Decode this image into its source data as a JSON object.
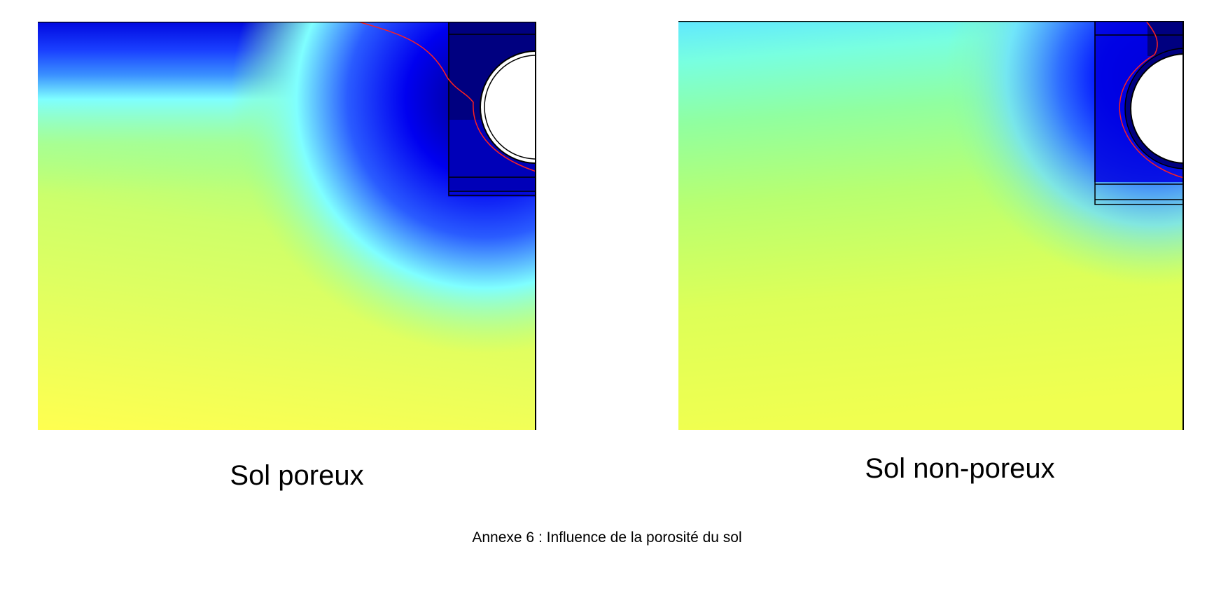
{
  "figures": [
    {
      "label": "Sol poreux",
      "colormap": [
        "#FFFF50",
        "#7FFFFF",
        "#0000FF",
        "#000080"
      ]
    },
    {
      "label": "Sol non-poreux",
      "colormap": [
        "#FFFF50",
        "#7FFFFF",
        "#0000FF",
        "#000080"
      ]
    }
  ],
  "caption": "Annexe 6 : Influence de la porosité du sol",
  "contour_color": "#FF2020"
}
